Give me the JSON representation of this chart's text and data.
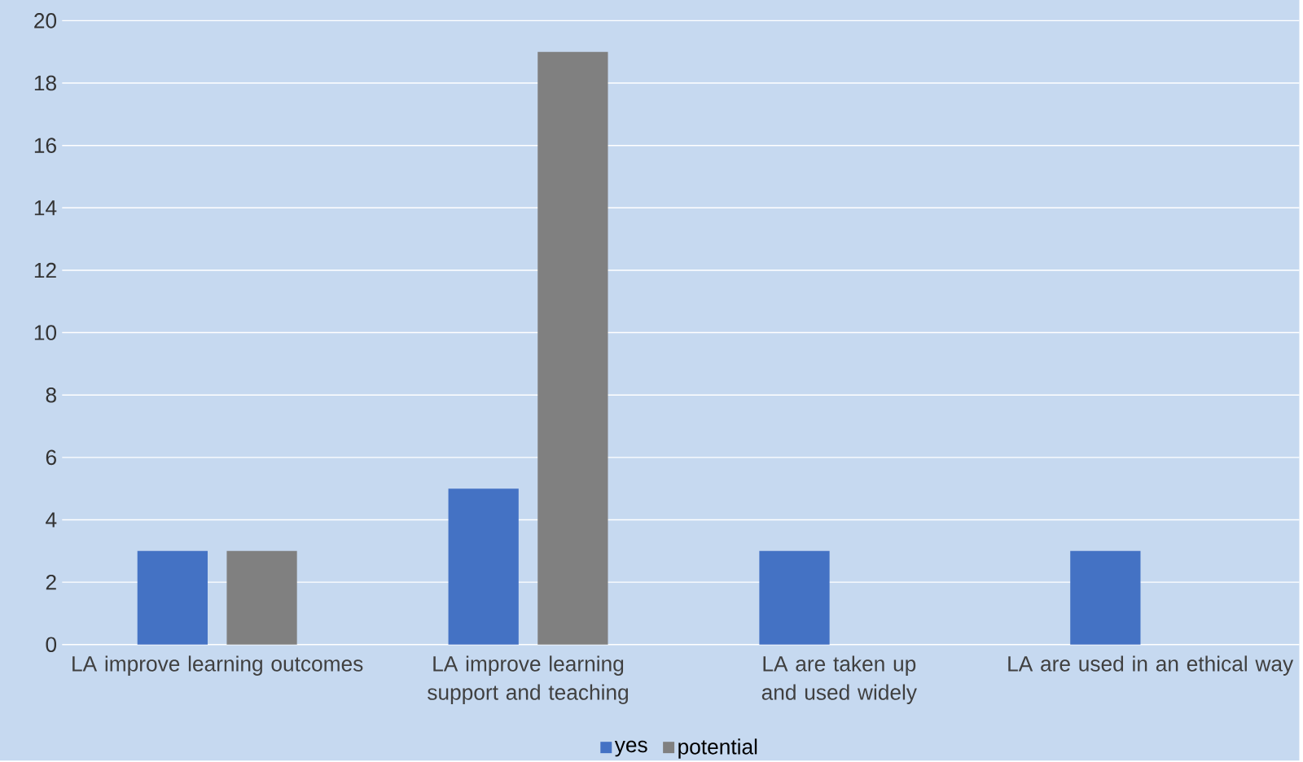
{
  "chart_data": {
    "type": "bar",
    "categories": [
      "LA improve learning outcomes",
      "LA improve learning support and teaching",
      "LA are taken up and used widely",
      "LA are used in an ethical way"
    ],
    "series": [
      {
        "name": "yes",
        "color": "#4472c4",
        "values": [
          3,
          5,
          3,
          3
        ]
      },
      {
        "name": "potential",
        "color": "#808080",
        "values": [
          3,
          19,
          0,
          0
        ]
      }
    ],
    "ylim": [
      0,
      20
    ],
    "yticks": [
      0,
      2,
      4,
      6,
      8,
      10,
      12,
      14,
      16,
      18,
      20
    ],
    "grid": "y",
    "legend": "bottom"
  }
}
